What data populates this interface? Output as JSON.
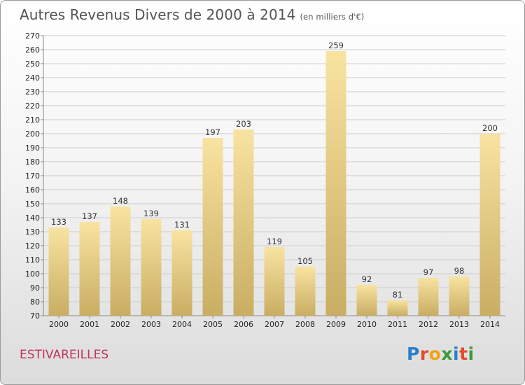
{
  "header": {
    "title": "Autres Revenus Divers de 2000 à 2014",
    "unit": "(en milliers d'€)"
  },
  "footer": {
    "place": "ESTIVAREILLES",
    "logo": "Proxiti"
  },
  "colors": {
    "bar_light": "#f8e3a0",
    "bar_dark": "#c9ad63",
    "grid": "#cccccc",
    "place": "#c0355a"
  },
  "chart_data": {
    "type": "bar",
    "title": "Autres Revenus Divers de 2000 à 2014",
    "subtitle": "(en milliers d'€)",
    "xlabel": "",
    "ylabel": "",
    "categories": [
      "2000",
      "2001",
      "2002",
      "2003",
      "2004",
      "2005",
      "2006",
      "2007",
      "2008",
      "2009",
      "2010",
      "2011",
      "2012",
      "2013",
      "2014"
    ],
    "values": [
      133,
      137,
      148,
      139,
      131,
      197,
      203,
      119,
      105,
      259,
      92,
      81,
      97,
      98,
      200
    ],
    "ylim": [
      70,
      270
    ],
    "ytick_step": 10,
    "grid": true,
    "legend": "none"
  }
}
